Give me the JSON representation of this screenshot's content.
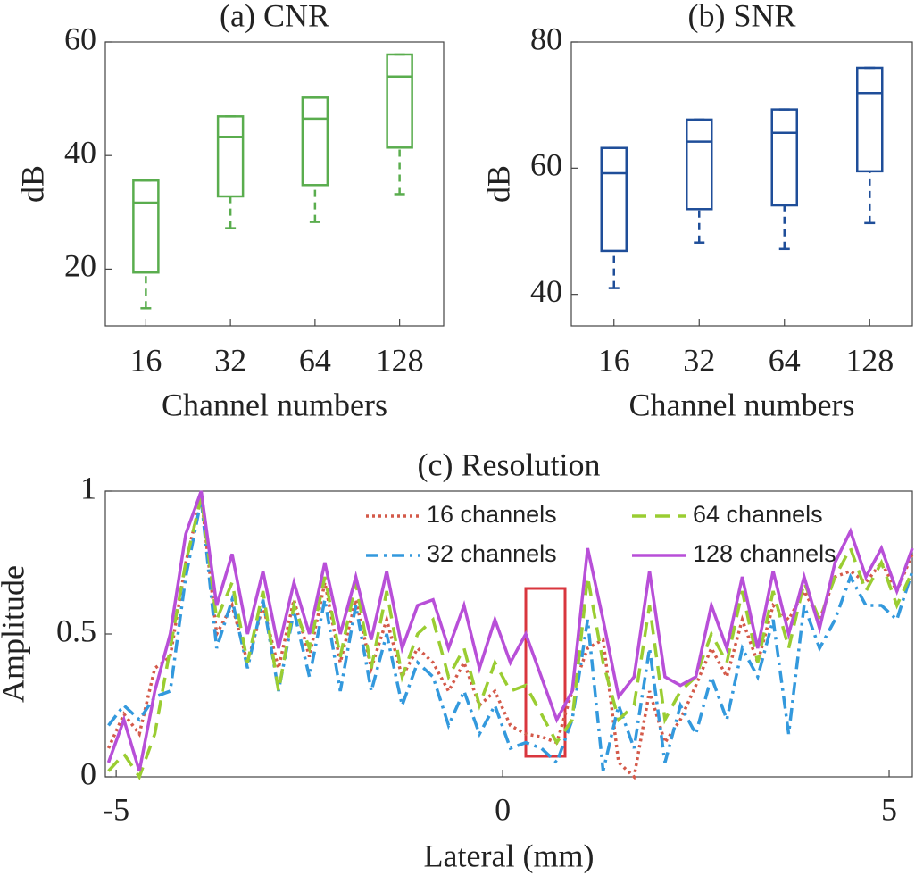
{
  "chart_data": [
    {
      "type": "box",
      "title": "(a) CNR",
      "xlabel": "Channel numbers",
      "ylabel": "dB",
      "categories": [
        "16",
        "32",
        "64",
        "128"
      ],
      "color": "#5aad4e",
      "boxes": [
        {
          "whislo": 13.1,
          "q1": 19.4,
          "med": 31.7,
          "q3": 35.6,
          "whishi": 35.6
        },
        {
          "whislo": 27.2,
          "q1": 32.8,
          "med": 43.3,
          "q3": 46.9,
          "whishi": 46.9
        },
        {
          "whislo": 28.3,
          "q1": 34.8,
          "med": 46.5,
          "q3": 50.2,
          "whishi": 50.2
        },
        {
          "whislo": 33.2,
          "q1": 41.4,
          "med": 53.9,
          "q3": 57.8,
          "whishi": 57.8
        }
      ],
      "ylim": [
        10,
        60
      ],
      "yticks": [
        20,
        40,
        60
      ]
    },
    {
      "type": "box",
      "title": "(b) SNR",
      "xlabel": "Channel numbers",
      "ylabel": "dB",
      "categories": [
        "16",
        "32",
        "64",
        "128"
      ],
      "color": "#1f4e99",
      "boxes": [
        {
          "whislo": 41,
          "q1": 46.9,
          "med": 59.2,
          "q3": 63.2,
          "whishi": 63.2
        },
        {
          "whislo": 48.2,
          "q1": 53.5,
          "med": 64.2,
          "q3": 67.7,
          "whishi": 67.7
        },
        {
          "whislo": 47.2,
          "q1": 54.1,
          "med": 65.6,
          "q3": 69.3,
          "whishi": 69.3
        },
        {
          "whislo": 51.3,
          "q1": 59.5,
          "med": 71.9,
          "q3": 75.9,
          "whishi": 75.9
        }
      ],
      "ylim": [
        35,
        80
      ],
      "yticks": [
        40,
        60,
        80
      ]
    },
    {
      "type": "line",
      "title": "(c) Resolution",
      "xlabel": "Lateral (mm)",
      "ylabel": "Amplitude",
      "x": [
        -5.1,
        -4.9,
        -4.7,
        -4.5,
        -4.3,
        -4.1,
        -3.9,
        -3.7,
        -3.5,
        -3.3,
        -3.1,
        -2.9,
        -2.7,
        -2.5,
        -2.3,
        -2.1,
        -1.9,
        -1.7,
        -1.5,
        -1.3,
        -1.1,
        -0.9,
        -0.7,
        -0.5,
        -0.3,
        -0.1,
        0.1,
        0.3,
        0.5,
        0.7,
        0.9,
        1.1,
        1.3,
        1.5,
        1.7,
        1.9,
        2.1,
        2.3,
        2.5,
        2.7,
        2.9,
        3.1,
        3.3,
        3.5,
        3.7,
        3.9,
        4.1,
        4.3,
        4.5,
        4.7,
        4.9,
        5.1,
        5.3
      ],
      "series": [
        {
          "name": "16 channels",
          "color": "#d45a4a",
          "dash": "dotted",
          "values": [
            0.1,
            0.22,
            0.15,
            0.38,
            0.42,
            0.75,
            0.98,
            0.5,
            0.6,
            0.4,
            0.6,
            0.38,
            0.62,
            0.42,
            0.68,
            0.4,
            0.62,
            0.38,
            0.55,
            0.35,
            0.45,
            0.4,
            0.3,
            0.4,
            0.25,
            0.3,
            0.18,
            0.15,
            0.14,
            0.12,
            0.3,
            0.45,
            0.48,
            0.05,
            0.0,
            0.3,
            0.12,
            0.2,
            0.32,
            0.45,
            0.35,
            0.55,
            0.4,
            0.6,
            0.55,
            0.65,
            0.55,
            0.7,
            0.72,
            0.68,
            0.75,
            0.65,
            0.78
          ]
        },
        {
          "name": "32 channels",
          "color": "#3399dd",
          "dash": "dash-dot",
          "values": [
            0.18,
            0.25,
            0.2,
            0.28,
            0.3,
            0.7,
            0.97,
            0.45,
            0.62,
            0.38,
            0.62,
            0.3,
            0.58,
            0.35,
            0.62,
            0.3,
            0.6,
            0.3,
            0.5,
            0.25,
            0.4,
            0.35,
            0.18,
            0.3,
            0.15,
            0.25,
            0.1,
            0.12,
            0.1,
            0.05,
            0.2,
            0.55,
            0.02,
            0.25,
            0.1,
            0.45,
            0.05,
            0.25,
            0.15,
            0.35,
            0.2,
            0.45,
            0.35,
            0.55,
            0.15,
            0.6,
            0.45,
            0.55,
            0.7,
            0.6,
            0.6,
            0.55,
            0.72
          ]
        },
        {
          "name": "64 channels",
          "color": "#9acd32",
          "dash": "dashed",
          "values": [
            0.02,
            0.08,
            0.0,
            0.15,
            0.45,
            0.75,
            0.98,
            0.55,
            0.68,
            0.4,
            0.65,
            0.3,
            0.6,
            0.45,
            0.7,
            0.42,
            0.68,
            0.38,
            0.65,
            0.35,
            0.5,
            0.55,
            0.35,
            0.45,
            0.25,
            0.4,
            0.3,
            0.32,
            0.22,
            0.12,
            0.2,
            0.7,
            0.4,
            0.2,
            0.25,
            0.6,
            0.2,
            0.3,
            0.35,
            0.5,
            0.4,
            0.65,
            0.4,
            0.65,
            0.45,
            0.68,
            0.55,
            0.7,
            0.8,
            0.65,
            0.75,
            0.6,
            0.72
          ]
        },
        {
          "name": "128 channels",
          "color": "#b84fd8",
          "dash": "solid",
          "values": [
            0.05,
            0.2,
            0.02,
            0.3,
            0.5,
            0.85,
            1.0,
            0.6,
            0.78,
            0.5,
            0.72,
            0.45,
            0.68,
            0.5,
            0.75,
            0.5,
            0.7,
            0.48,
            0.72,
            0.45,
            0.6,
            0.62,
            0.45,
            0.6,
            0.38,
            0.55,
            0.4,
            0.5,
            0.35,
            0.2,
            0.3,
            0.8,
            0.55,
            0.28,
            0.35,
            0.72,
            0.35,
            0.32,
            0.35,
            0.6,
            0.45,
            0.7,
            0.45,
            0.72,
            0.5,
            0.7,
            0.52,
            0.75,
            0.86,
            0.7,
            0.8,
            0.65,
            0.8
          ]
        }
      ],
      "xlim": [
        -5.14,
        5.3
      ],
      "xticks": [
        -5,
        0,
        5
      ],
      "ylim": [
        0,
        1
      ],
      "yticks": [
        0,
        0.5,
        1
      ]
    }
  ]
}
